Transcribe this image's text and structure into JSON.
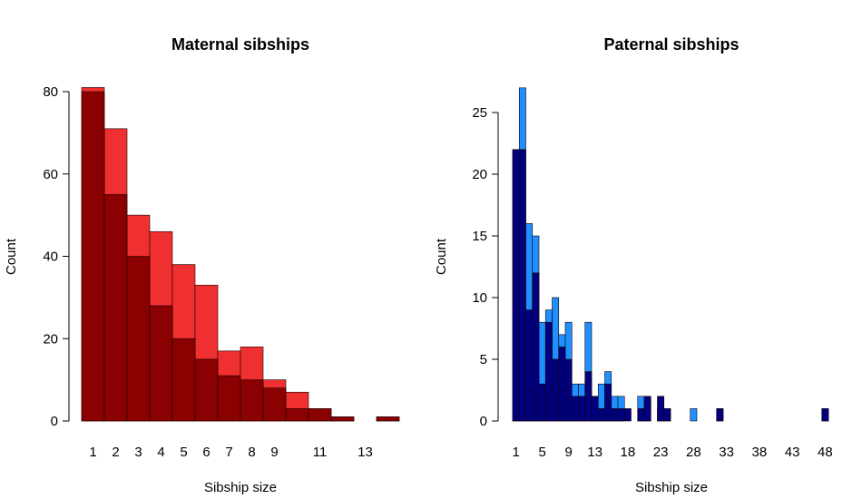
{
  "chart_data": [
    {
      "type": "bar",
      "title": "Maternal sibships",
      "xlabel": "Sibship size",
      "ylabel": "Count",
      "ylim": [
        0,
        80
      ],
      "yticks": [
        "0",
        "20",
        "40",
        "60",
        "80"
      ],
      "xticks": [
        "1",
        "2",
        "3",
        "4",
        "5",
        "6",
        "7",
        "8",
        "9",
        "11",
        "13"
      ],
      "grid": false,
      "legend": "none",
      "x": [
        1,
        2,
        3,
        4,
        5,
        6,
        7,
        8,
        9,
        10,
        11,
        12,
        13,
        14
      ],
      "series": [
        {
          "color": "#F03030",
          "values": [
            81,
            71,
            50,
            46,
            38,
            33,
            17,
            18,
            10,
            7,
            3,
            1,
            0,
            1
          ]
        },
        {
          "color": "#8B0000",
          "values": [
            80,
            55,
            40,
            28,
            20,
            15,
            11,
            10,
            8,
            3,
            3,
            1,
            0,
            1
          ]
        }
      ]
    },
    {
      "type": "bar",
      "title": "Paternal sibships",
      "xlabel": "Sibship size",
      "ylabel": "Count",
      "ylim": [
        0,
        27
      ],
      "yticks": [
        "0",
        "5",
        "10",
        "15",
        "20",
        "25"
      ],
      "xticks": [
        "1",
        "3",
        "5",
        "7",
        "9",
        "11",
        "13",
        "15",
        "17",
        "19",
        "21",
        "23",
        "25",
        "27",
        "29",
        "31",
        "33",
        "35",
        "37",
        "39",
        "41",
        "43",
        "45",
        "47"
      ],
      "xticks_visible": [
        "1",
        "5",
        "9",
        "13",
        "18",
        "23",
        "28",
        "33",
        "38",
        "43",
        "48"
      ],
      "grid": false,
      "legend": "none",
      "x": [
        1,
        2,
        3,
        4,
        5,
        6,
        7,
        8,
        9,
        10,
        11,
        12,
        13,
        14,
        15,
        16,
        17,
        18,
        19,
        20,
        21,
        22,
        23,
        24,
        25,
        26,
        27,
        28,
        29,
        30,
        31,
        32,
        33,
        34,
        35,
        36,
        37,
        38,
        39,
        40,
        41,
        42,
        43,
        44,
        45,
        46,
        47,
        48
      ],
      "series": [
        {
          "color": "#1E90FF",
          "values": [
            22,
            27,
            16,
            15,
            8,
            9,
            10,
            7,
            8,
            3,
            3,
            8,
            2,
            3,
            4,
            2,
            2,
            0,
            0,
            2,
            2,
            0,
            1,
            1,
            0,
            0,
            0,
            1,
            0,
            0,
            0,
            1,
            0,
            0,
            0,
            0,
            0,
            0,
            0,
            0,
            0,
            0,
            0,
            0,
            0,
            0,
            0,
            1
          ]
        },
        {
          "color": "#00007F",
          "values": [
            22,
            22,
            9,
            12,
            3,
            8,
            5,
            6,
            5,
            2,
            2,
            4,
            2,
            1,
            3,
            1,
            1,
            1,
            0,
            1,
            2,
            0,
            2,
            1,
            0,
            0,
            0,
            0,
            0,
            0,
            0,
            1,
            0,
            0,
            0,
            0,
            0,
            0,
            0,
            0,
            0,
            0,
            0,
            0,
            0,
            0,
            0,
            1
          ]
        }
      ]
    }
  ]
}
